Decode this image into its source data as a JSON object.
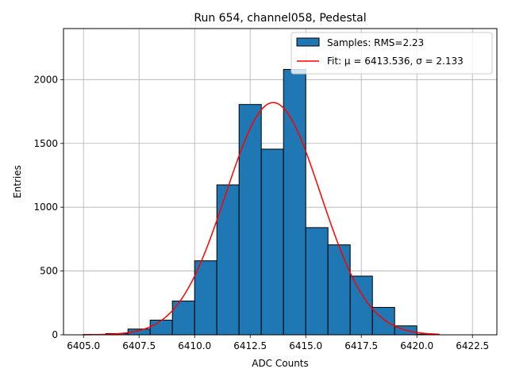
{
  "chart_data": {
    "type": "bar",
    "title": "Run 654, channel058, Pedestal",
    "xlabel": "ADC Counts",
    "ylabel": "Entries",
    "xlim": [
      6404.1,
      6423.6
    ],
    "ylim": [
      0,
      2400
    ],
    "grid": true,
    "legend_placement": "top-right",
    "x_ticks": [
      6405.0,
      6407.5,
      6410.0,
      6412.5,
      6415.0,
      6417.5,
      6420.0,
      6422.5
    ],
    "x_tick_labels": [
      "6405.0",
      "6407.5",
      "6410.0",
      "6412.5",
      "6415.0",
      "6417.5",
      "6420.0",
      "6422.5"
    ],
    "y_ticks": [
      0,
      500,
      1000,
      1500,
      2000
    ],
    "y_tick_labels": [
      "0",
      "500",
      "1000",
      "1500",
      "2000"
    ],
    "bins": [
      {
        "x0": 6405,
        "x1": 6406,
        "count": 3
      },
      {
        "x0": 6406,
        "x1": 6407,
        "count": 10
      },
      {
        "x0": 6407,
        "x1": 6408,
        "count": 45
      },
      {
        "x0": 6408,
        "x1": 6409,
        "count": 115
      },
      {
        "x0": 6409,
        "x1": 6410,
        "count": 265
      },
      {
        "x0": 6410,
        "x1": 6411,
        "count": 580
      },
      {
        "x0": 6411,
        "x1": 6412,
        "count": 1175
      },
      {
        "x0": 6412,
        "x1": 6413,
        "count": 1805
      },
      {
        "x0": 6413,
        "x1": 6414,
        "count": 1455
      },
      {
        "x0": 6414,
        "x1": 6415,
        "count": 2080
      },
      {
        "x0": 6415,
        "x1": 6416,
        "count": 840
      },
      {
        "x0": 6416,
        "x1": 6417,
        "count": 705
      },
      {
        "x0": 6417,
        "x1": 6418,
        "count": 460
      },
      {
        "x0": 6418,
        "x1": 6419,
        "count": 215
      },
      {
        "x0": 6419,
        "x1": 6420,
        "count": 70
      },
      {
        "x0": 6420,
        "x1": 6421,
        "count": 5
      }
    ],
    "fit": {
      "type": "gaussian",
      "mu": 6413.536,
      "sigma": 2.133,
      "amplitude": 1820,
      "x_range": [
        6405,
        6421
      ]
    },
    "series": [
      {
        "name": "Samples: RMS=2.23",
        "kind": "histogram",
        "color": "#1f77b4"
      },
      {
        "name": "Fit: μ = 6413.536, σ = 2.133",
        "kind": "line",
        "color": "#ff0000"
      }
    ]
  }
}
